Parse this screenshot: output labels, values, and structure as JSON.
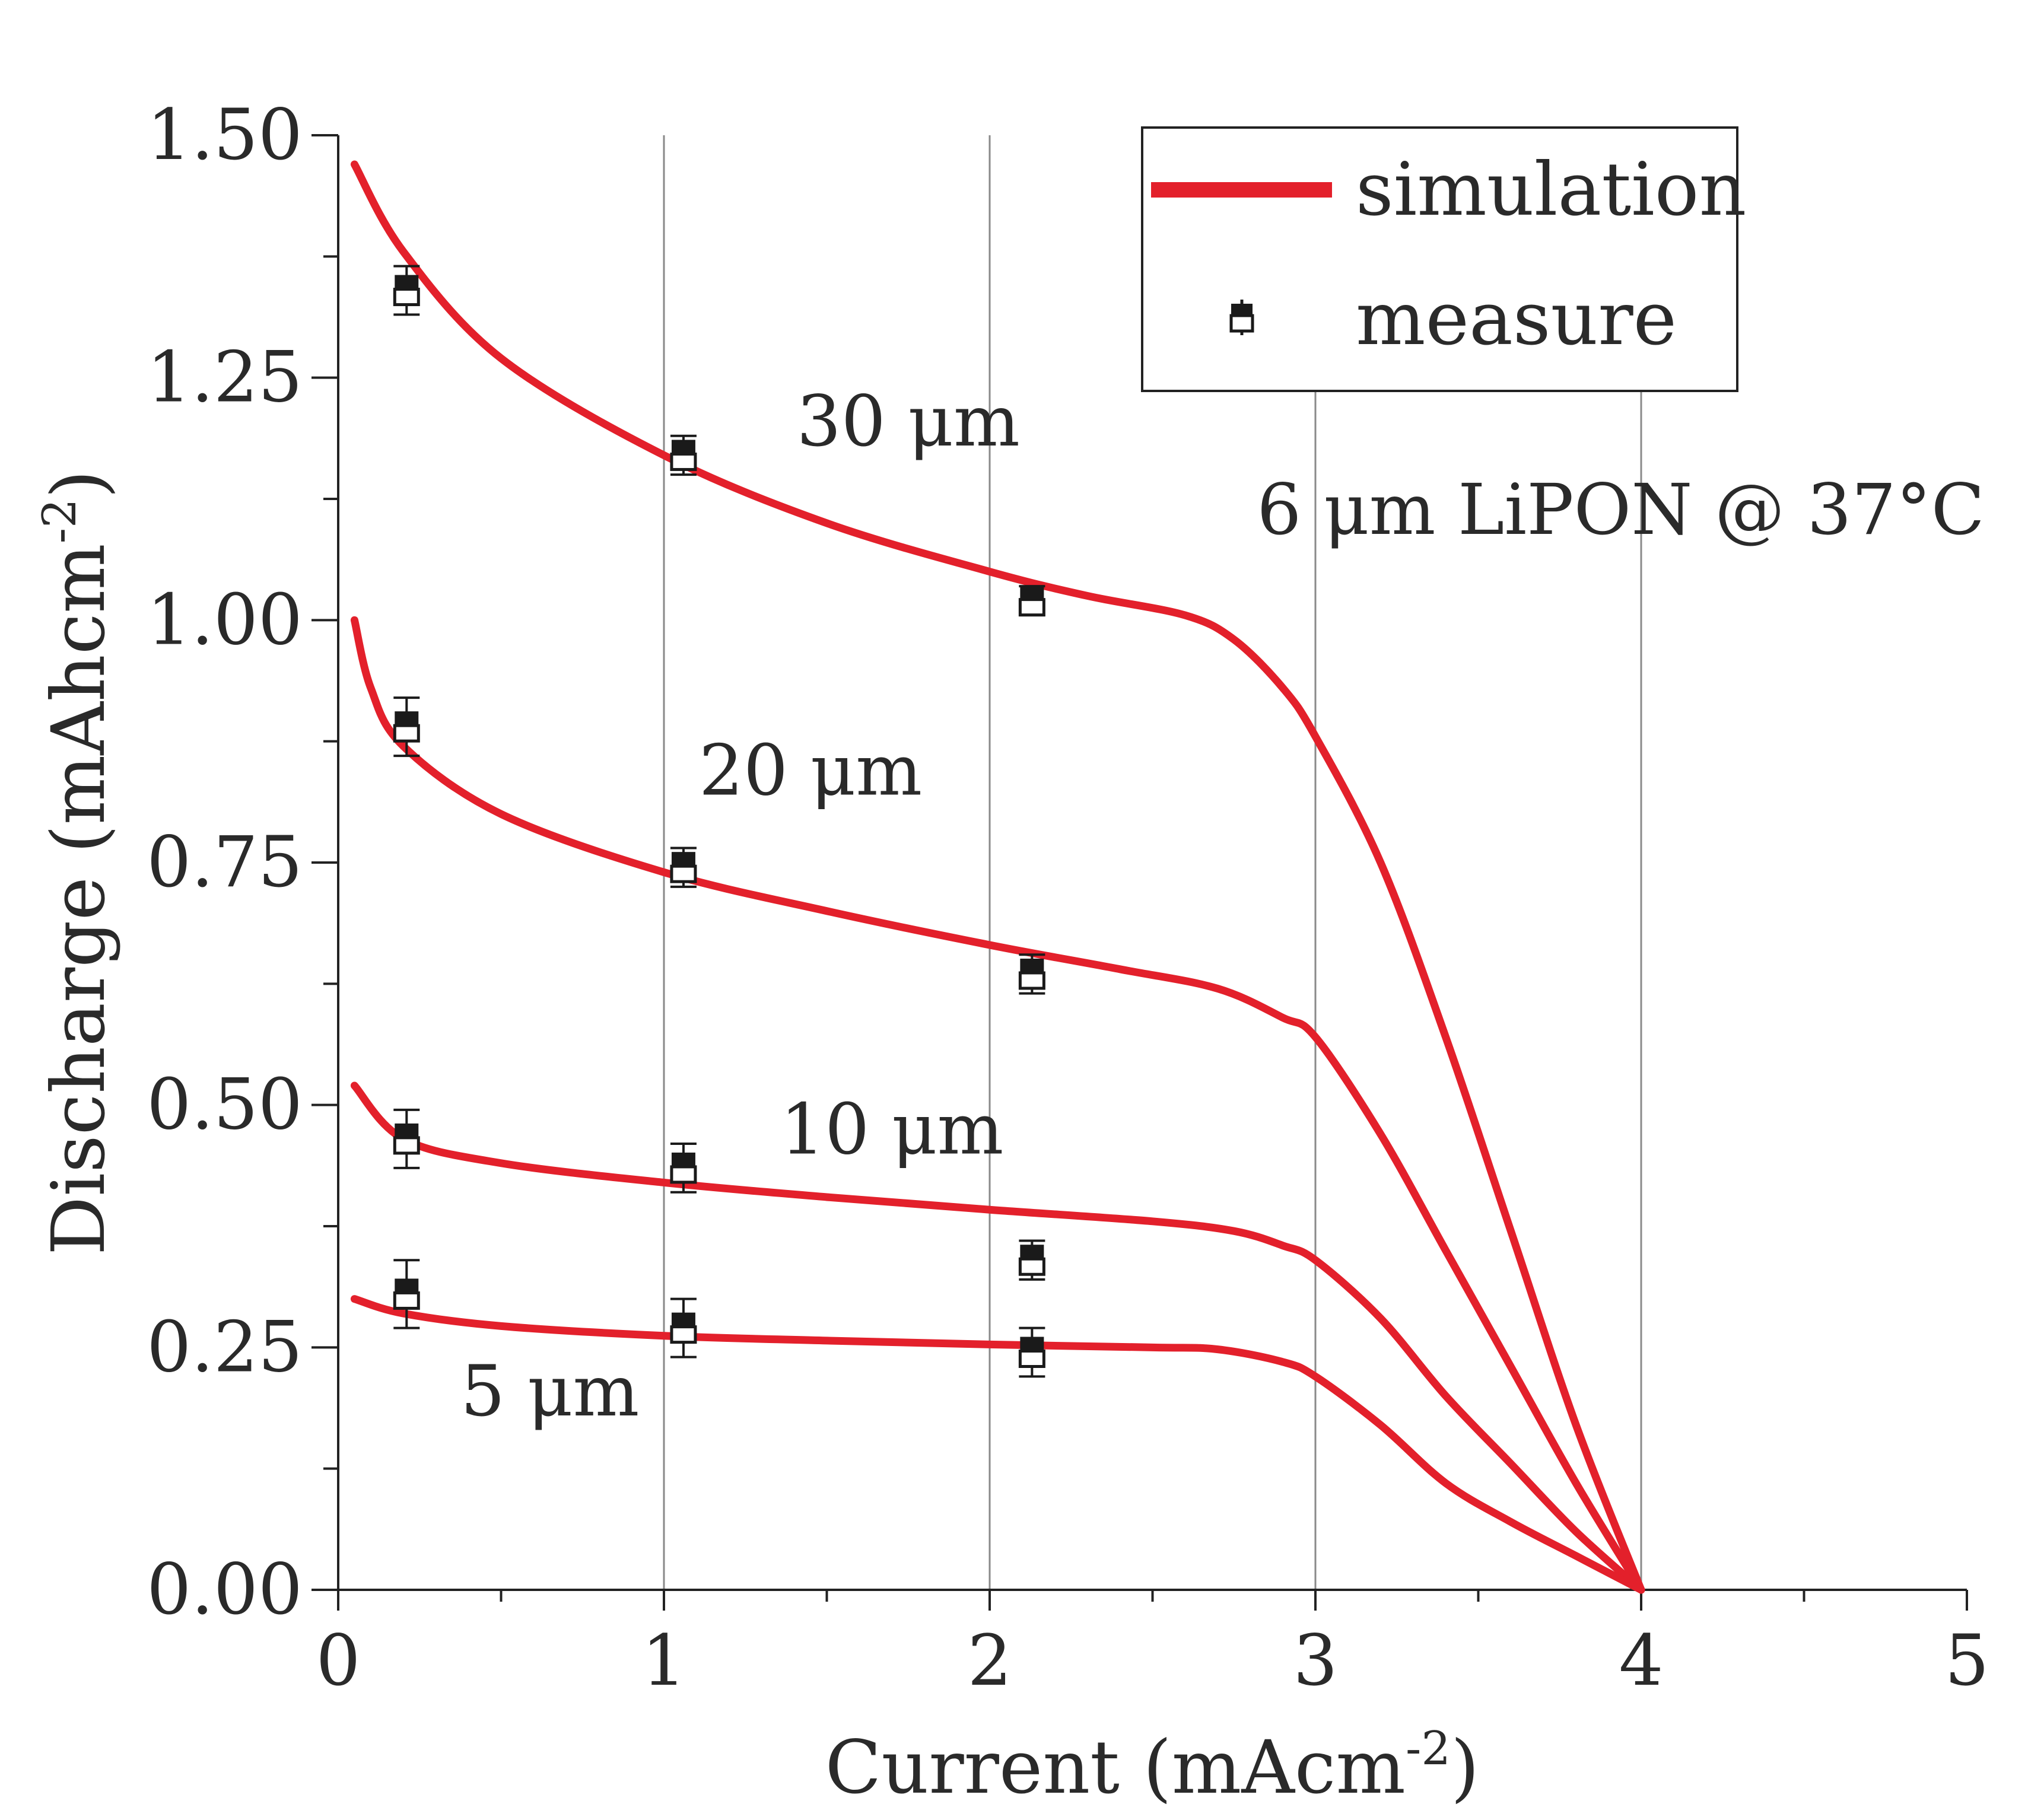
{
  "chart_data": {
    "type": "line",
    "title": "",
    "xlabel": "Current (mAcm",
    "xlabel_sup": "-2",
    "xlabel_suffix": ")",
    "ylabel": "Discharge (mAhcm",
    "ylabel_sup": "-2",
    "ylabel_suffix": ")",
    "xlim": [
      0,
      5
    ],
    "ylim": [
      0,
      1.5
    ],
    "x_ticks": [
      0,
      1,
      2,
      3,
      4,
      5
    ],
    "x_tick_labels": [
      "0",
      "1",
      "2",
      "3",
      "4",
      "5"
    ],
    "y_ticks": [
      0,
      0.25,
      0.5,
      0.75,
      1.0,
      1.25,
      1.5
    ],
    "y_tick_labels": [
      "0.00",
      "0.25",
      "0.50",
      "0.75",
      "1.00",
      "1.25",
      "1.50"
    ],
    "vertical_grid_at": [
      1,
      2,
      3,
      4
    ],
    "legend": {
      "position": "top-right",
      "entries": [
        {
          "label": "simulation",
          "marker": "line"
        },
        {
          "label": "measure",
          "marker": "square-errorbar"
        }
      ]
    },
    "colors": {
      "simulation": "#e3202b",
      "measure": "#1a1a1a"
    },
    "condition_label": "6 μm LiPON @ 37°C",
    "series": [
      {
        "name": "30 μm",
        "simulation": {
          "x": [
            0.05,
            0.2,
            0.5,
            1.0,
            1.5,
            2.0,
            2.3,
            2.6,
            2.75,
            2.9,
            3.0,
            3.2,
            3.4,
            3.6,
            3.8,
            4.0
          ],
          "y": [
            1.47,
            1.38,
            1.27,
            1.17,
            1.1,
            1.05,
            1.025,
            1.005,
            0.98,
            0.93,
            0.88,
            0.75,
            0.57,
            0.37,
            0.17,
            0.0
          ]
        },
        "measure": {
          "x": [
            0.21,
            1.06,
            2.13
          ],
          "y": [
            1.34,
            1.17,
            1.02
          ],
          "err": [
            0.025,
            0.02,
            0.015
          ]
        }
      },
      {
        "name": "20 μm",
        "simulation": {
          "x": [
            0.05,
            0.1,
            0.2,
            0.5,
            1.0,
            1.5,
            2.0,
            2.4,
            2.7,
            2.9,
            3.0,
            3.2,
            3.4,
            3.6,
            3.8,
            4.0
          ],
          "y": [
            1.0,
            0.93,
            0.87,
            0.8,
            0.74,
            0.7,
            0.665,
            0.64,
            0.62,
            0.59,
            0.57,
            0.47,
            0.35,
            0.23,
            0.11,
            0.0
          ]
        },
        "measure": {
          "x": [
            0.21,
            1.06,
            2.13
          ],
          "y": [
            0.89,
            0.745,
            0.635
          ],
          "err": [
            0.03,
            0.02,
            0.02
          ]
        }
      },
      {
        "name": "10 μm",
        "simulation": {
          "x": [
            0.05,
            0.2,
            0.5,
            1.0,
            1.5,
            2.0,
            2.5,
            2.75,
            2.9,
            3.0,
            3.2,
            3.4,
            3.6,
            3.8,
            4.0
          ],
          "y": [
            0.52,
            0.465,
            0.44,
            0.42,
            0.405,
            0.392,
            0.38,
            0.37,
            0.355,
            0.34,
            0.28,
            0.2,
            0.13,
            0.06,
            0.0
          ]
        },
        "measure": {
          "x": [
            0.21,
            1.06,
            2.13
          ],
          "y": [
            0.465,
            0.435,
            0.34
          ],
          "err": [
            0.03,
            0.025,
            0.02
          ]
        }
      },
      {
        "name": "5 μm",
        "simulation": {
          "x": [
            0.05,
            0.2,
            0.5,
            1.0,
            1.5,
            2.0,
            2.5,
            2.7,
            2.9,
            3.0,
            3.2,
            3.4,
            3.6,
            3.8,
            4.0
          ],
          "y": [
            0.3,
            0.285,
            0.272,
            0.262,
            0.257,
            0.253,
            0.25,
            0.248,
            0.235,
            0.22,
            0.17,
            0.11,
            0.07,
            0.035,
            0.0
          ]
        },
        "measure": {
          "x": [
            0.21,
            1.06,
            2.13
          ],
          "y": [
            0.305,
            0.27,
            0.245
          ],
          "err": [
            0.035,
            0.03,
            0.025
          ]
        }
      }
    ],
    "series_labels": [
      {
        "text": "30 μm",
        "x": 1.75,
        "y": 1.18
      },
      {
        "text": "20 μm",
        "x": 1.45,
        "y": 0.82
      },
      {
        "text": "10 μm",
        "x": 1.7,
        "y": 0.45
      },
      {
        "text": "5 μm",
        "x": 0.65,
        "y": 0.18
      }
    ]
  }
}
